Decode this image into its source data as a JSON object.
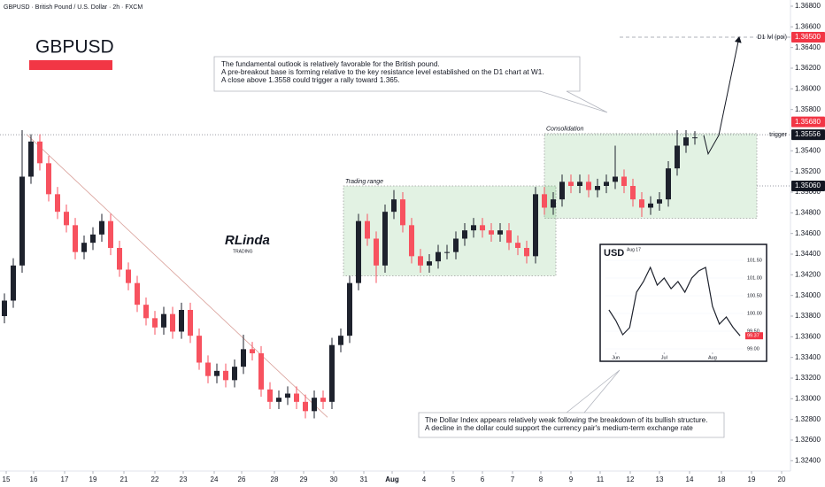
{
  "title": "GBPUSD · British Pound / U.S. Dollar · 2h · FXCM",
  "chart_data": {
    "type": "candlestick",
    "symbol": "GBPUSD",
    "open": [
      1.338,
      1.3395,
      1.3429,
      1.3515,
      1.3549,
      1.3528,
      1.3498,
      1.3481,
      1.3468,
      1.3442,
      1.3451,
      1.3459,
      1.3472,
      1.3446,
      1.3425,
      1.3412,
      1.3391,
      1.3378,
      1.3369,
      1.3382,
      1.3365,
      1.3386,
      1.3361,
      1.3335,
      1.3322,
      1.3327,
      1.3318,
      1.3331,
      1.3348,
      1.3344,
      1.3309,
      1.3297,
      1.3301,
      1.3305,
      1.3297,
      1.3288,
      1.3301,
      1.3297,
      1.3352,
      1.3361,
      1.3412,
      1.3472,
      1.3455,
      1.3429,
      1.3481,
      1.3493,
      1.3468,
      1.3438,
      1.3429,
      1.3433,
      1.3442,
      1.3442,
      1.3455,
      1.3463,
      1.3468,
      1.3463,
      1.3459,
      1.3463,
      1.3451,
      1.3446,
      1.3438,
      1.3498,
      1.3485,
      1.3493,
      1.351,
      1.3506,
      1.351,
      1.3502,
      1.3506,
      1.351,
      1.3515,
      1.3506,
      1.3493,
      1.3485,
      1.3489,
      1.3493,
      1.3523,
      1.3545,
      1.3553
    ],
    "high": [
      1.3402,
      1.3436,
      1.356,
      1.3556,
      1.3556,
      1.3535,
      1.3505,
      1.3488,
      1.3475,
      1.3458,
      1.3466,
      1.3479,
      1.3479,
      1.3453,
      1.3432,
      1.3419,
      1.3398,
      1.3385,
      1.3389,
      1.3389,
      1.3393,
      1.3393,
      1.3368,
      1.3342,
      1.3334,
      1.3334,
      1.3338,
      1.3362,
      1.3355,
      1.3351,
      1.3316,
      1.3308,
      1.3312,
      1.3312,
      1.3304,
      1.3308,
      1.3308,
      1.3359,
      1.3368,
      1.3419,
      1.3479,
      1.3479,
      1.3462,
      1.3488,
      1.3502,
      1.35,
      1.3475,
      1.3445,
      1.344,
      1.3449,
      1.3449,
      1.3462,
      1.347,
      1.3475,
      1.3475,
      1.347,
      1.347,
      1.347,
      1.3458,
      1.3453,
      1.3505,
      1.3505,
      1.35,
      1.3517,
      1.3517,
      1.3517,
      1.3517,
      1.3513,
      1.3517,
      1.3545,
      1.3522,
      1.3513,
      1.35,
      1.3496,
      1.35,
      1.353,
      1.356,
      1.356,
      1.3559
    ],
    "low": [
      1.3373,
      1.3388,
      1.3422,
      1.3508,
      1.3521,
      1.3491,
      1.3474,
      1.3461,
      1.3435,
      1.3435,
      1.3444,
      1.3452,
      1.3439,
      1.3418,
      1.3405,
      1.3384,
      1.3371,
      1.3362,
      1.3362,
      1.3358,
      1.3358,
      1.3354,
      1.3328,
      1.3315,
      1.3315,
      1.3311,
      1.3311,
      1.3324,
      1.3337,
      1.3302,
      1.329,
      1.329,
      1.3294,
      1.329,
      1.3281,
      1.3281,
      1.329,
      1.329,
      1.3345,
      1.3354,
      1.3405,
      1.3448,
      1.3412,
      1.3422,
      1.3474,
      1.3461,
      1.3431,
      1.3422,
      1.3422,
      1.3426,
      1.3435,
      1.3435,
      1.3448,
      1.3456,
      1.3456,
      1.3452,
      1.3452,
      1.3444,
      1.3439,
      1.3431,
      1.3431,
      1.3478,
      1.3478,
      1.3486,
      1.3499,
      1.3499,
      1.3495,
      1.3495,
      1.3499,
      1.3503,
      1.3499,
      1.3486,
      1.3476,
      1.3478,
      1.3482,
      1.3486,
      1.3516,
      1.3538,
      1.3546
    ],
    "close": [
      1.3395,
      1.3429,
      1.3515,
      1.3549,
      1.3528,
      1.3498,
      1.3481,
      1.3468,
      1.3442,
      1.3451,
      1.3459,
      1.3472,
      1.3446,
      1.3425,
      1.3412,
      1.3391,
      1.3378,
      1.3369,
      1.3382,
      1.3365,
      1.3386,
      1.3361,
      1.3335,
      1.3322,
      1.3327,
      1.3318,
      1.3331,
      1.3348,
      1.3344,
      1.3309,
      1.3297,
      1.3301,
      1.3305,
      1.3297,
      1.3288,
      1.3301,
      1.3297,
      1.3352,
      1.3361,
      1.3412,
      1.3472,
      1.3455,
      1.3429,
      1.3481,
      1.3493,
      1.3468,
      1.3438,
      1.3429,
      1.3433,
      1.3442,
      1.3442,
      1.3455,
      1.3463,
      1.3468,
      1.3463,
      1.3459,
      1.3463,
      1.3451,
      1.3446,
      1.3438,
      1.3498,
      1.3485,
      1.3493,
      1.351,
      1.3506,
      1.351,
      1.3502,
      1.3506,
      1.351,
      1.3515,
      1.3506,
      1.3493,
      1.3485,
      1.3489,
      1.3493,
      1.3523,
      1.3545,
      1.3553,
      1.3553
    ],
    "up_color": "#1e222d",
    "down_color": "#f7525f",
    "xlim": [
      -0.5,
      88.8
    ],
    "xticks": [
      {
        "value": 0.2,
        "label": "15"
      },
      {
        "value": 3.3,
        "label": "16"
      },
      {
        "value": 6.8,
        "label": "17"
      },
      {
        "value": 10,
        "label": "19"
      },
      {
        "value": 13.5,
        "label": "21"
      },
      {
        "value": 17,
        "label": "22"
      },
      {
        "value": 20.2,
        "label": "23"
      },
      {
        "value": 23.7,
        "label": "24"
      },
      {
        "value": 26.8,
        "label": "26"
      },
      {
        "value": 30.5,
        "label": "28"
      },
      {
        "value": 33.8,
        "label": "29"
      },
      {
        "value": 37.2,
        "label": "30"
      },
      {
        "value": 40.6,
        "label": "31"
      },
      {
        "value": 43.8,
        "label": "Aug"
      },
      {
        "value": 47.4,
        "label": "4"
      },
      {
        "value": 50.7,
        "label": "5"
      },
      {
        "value": 54,
        "label": "6"
      },
      {
        "value": 57.4,
        "label": "7"
      },
      {
        "value": 60.6,
        "label": "8"
      },
      {
        "value": 64,
        "label": "9"
      },
      {
        "value": 67.3,
        "label": "11"
      },
      {
        "value": 70.7,
        "label": "12"
      },
      {
        "value": 74,
        "label": "13"
      },
      {
        "value": 77.4,
        "label": "14"
      },
      {
        "value": 81,
        "label": "18"
      },
      {
        "value": 84.4,
        "label": "19"
      },
      {
        "value": 87.8,
        "label": "20"
      }
    ],
    "ylim": [
      1.323,
      1.3686
    ],
    "yticks": [
      {
        "value": 1.324,
        "label": "1.32400"
      },
      {
        "value": 1.326,
        "label": "1.32600"
      },
      {
        "value": 1.328,
        "label": "1.32800"
      },
      {
        "value": 1.33,
        "label": "1.33000"
      },
      {
        "value": 1.332,
        "label": "1.33200"
      },
      {
        "value": 1.334,
        "label": "1.33400"
      },
      {
        "value": 1.336,
        "label": "1.33600"
      },
      {
        "value": 1.338,
        "label": "1.33800"
      },
      {
        "value": 1.34,
        "label": "1.34000"
      },
      {
        "value": 1.342,
        "label": "1.34200"
      },
      {
        "value": 1.344,
        "label": "1.34400"
      },
      {
        "value": 1.346,
        "label": "1.34600"
      },
      {
        "value": 1.348,
        "label": "1.34800"
      },
      {
        "value": 1.35,
        "label": "1.35000"
      },
      {
        "value": 1.352,
        "label": "1.35200"
      },
      {
        "value": 1.354,
        "label": "1.35400"
      },
      {
        "value": 1.358,
        "label": "1.35800"
      },
      {
        "value": 1.36,
        "label": "1.36000"
      },
      {
        "value": 1.362,
        "label": "1.36200"
      },
      {
        "value": 1.364,
        "label": "1.36400"
      },
      {
        "value": 1.366,
        "label": "1.36600"
      },
      {
        "value": 1.368,
        "label": "1.36800"
      }
    ],
    "levels": [
      {
        "value": 1.365,
        "label": "1.36500",
        "name": "D1 lvl (poi)",
        "color": "#f23645",
        "style": "dashed",
        "from": 69.5
      },
      {
        "value": 1.3568,
        "label": "1.35680",
        "color": "#f23645"
      },
      {
        "value": 1.35556,
        "label": "1.35556",
        "name": "trigger",
        "color": "#131722",
        "style": "dotted",
        "from": -0.5
      },
      {
        "value": 1.3506,
        "label": "1.35060",
        "color": "#131722",
        "style": "dotted",
        "from": 85
      }
    ],
    "zones": [
      {
        "label": "Trading range",
        "x": [
          38.3,
          62.3
        ],
        "y": [
          1.3419,
          1.3506
        ]
      },
      {
        "label": "Consolidation",
        "x": [
          61,
          85
        ],
        "y": [
          1.34746,
          1.35567
        ]
      }
    ],
    "trendline": {
      "x": [
        2.5,
        36.5
      ],
      "y": [
        1.3556,
        1.3282
      ]
    },
    "projection": {
      "x": [
        79,
        79.5,
        80.7,
        83
      ],
      "y": [
        1.3555,
        1.3537,
        1.3555,
        1.365
      ]
    },
    "annotations": [
      {
        "lines": [
          "The fundamental outlook is relatively favorable for the British pound.",
          "A pre-breakout base is forming relative to the key resistance level established on the D1 chart at W1.",
          "A close above 1.3558 could trigger a rally toward 1.365."
        ]
      },
      {
        "lines": [
          "The Dollar Index appears relatively weak following the breakdown of its bullish structure.",
          "A decline in the dollar could support the currency pair's medium-term exchange rate"
        ]
      }
    ],
    "logo": "RLinda",
    "logo_sub": "TRADING",
    "inset": {
      "title": "USD",
      "date": "Aug 17",
      "values": [
        100.1,
        99.8,
        99.4,
        99.6,
        100.6,
        100.9,
        101.3,
        100.8,
        101.0,
        100.7,
        100.9,
        100.6,
        101.0,
        101.2,
        101.3,
        100.2,
        99.7,
        99.9,
        99.6,
        99.37
      ],
      "color": "#1e222d",
      "xlim": [
        -0.5,
        19.5
      ],
      "xticks": [
        {
          "value": 1,
          "label": "Jun"
        },
        {
          "value": 8,
          "label": "Jul"
        },
        {
          "value": 15,
          "label": "Aug"
        }
      ],
      "ylim": [
        98.9,
        101.75
      ],
      "yticks": [
        {
          "value": 101.5,
          "label": "101.50"
        },
        {
          "value": 101,
          "label": "101.00"
        },
        {
          "value": 100.5,
          "label": "100.50"
        },
        {
          "value": 100,
          "label": "100.00"
        },
        {
          "value": 99.5,
          "label": "99.50"
        },
        {
          "value": 99,
          "label": "99.00"
        }
      ],
      "marker": {
        "value": 99.37,
        "label": "99.37"
      }
    }
  }
}
